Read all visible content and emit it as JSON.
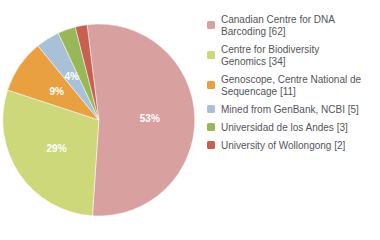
{
  "chart_data": {
    "type": "pie",
    "categories": [
      "Canadian Centre for DNA\nBarcoding [62]",
      "Centre for Biodiversity\nGenomics [34]",
      "Genoscope, Centre National de\nSequencage [11]",
      "Mined from GenBank, NCBI [5]",
      "Universidad de los Andes [3]",
      "University of Wollongong [2]"
    ],
    "values": [
      53,
      29,
      9,
      4,
      3,
      2
    ],
    "value_labels": [
      "53%",
      "29%",
      "9%",
      "4%",
      null,
      null
    ],
    "data_labels": true,
    "colors": [
      "#d9a0a0",
      "#cdd87a",
      "#e8a040",
      "#a8c0d8",
      "#98b858",
      "#c86050"
    ],
    "legend": "right"
  }
}
